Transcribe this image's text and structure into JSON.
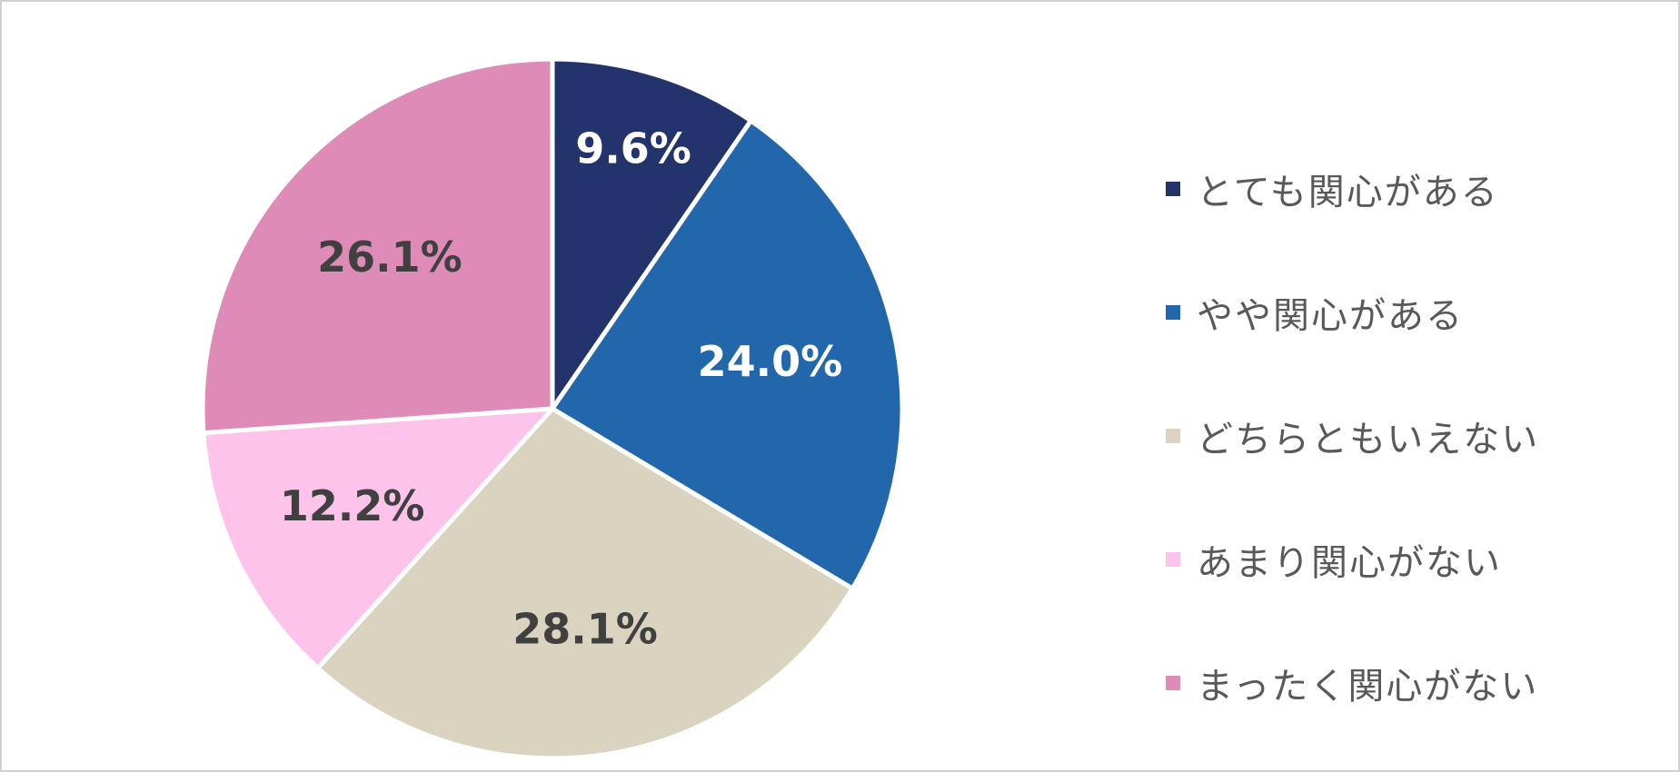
{
  "chart_data": {
    "type": "pie",
    "title": "",
    "categories": [
      "とても関心がある",
      "やや関心がある",
      "どちらともいえない",
      "あまり関心がない",
      "まったく関心がない"
    ],
    "values": [
      9.6,
      24.0,
      28.1,
      12.2,
      26.1
    ],
    "data_labels": [
      "9.6%",
      "24.0%",
      "28.1%",
      "12.2%",
      "26.1%"
    ],
    "colors": [
      "#23346c",
      "#2266ab",
      "#dad3bf",
      "#fdc3ea",
      "#de8bb8"
    ],
    "label_colors": [
      "#ffffff",
      "#ffffff",
      "#404040",
      "#404040",
      "#404040"
    ],
    "start_angle_deg": 0,
    "direction": "clockwise",
    "legend_position": "right"
  }
}
